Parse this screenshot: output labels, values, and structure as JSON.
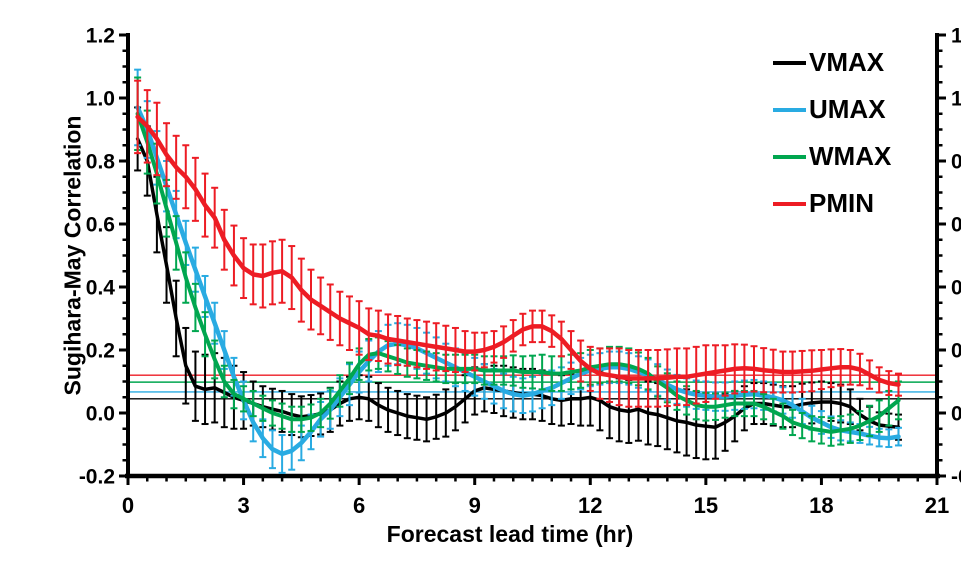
{
  "chart_data": {
    "type": "line",
    "title": "",
    "xlabel": "Forecast lead time (hr)",
    "ylabel": "Sugihara-May Correlation",
    "xlim": [
      0,
      21
    ],
    "ylim": [
      -0.2,
      1.2
    ],
    "x_major_ticks": [
      0,
      3,
      6,
      9,
      12,
      15,
      18,
      21
    ],
    "x_minor_step": 0.5,
    "y_major_ticks": [
      -0.2,
      0.0,
      0.2,
      0.4,
      0.6,
      0.8,
      1.0,
      1.2
    ],
    "y_minor_step": 0.05,
    "grid": false,
    "legend_position": "top-right-inside",
    "right_axis_mirror": true,
    "axis_color": "#000000",
    "background": "#ffffff",
    "x_start": 0.25,
    "x_step": 0.25,
    "series": [
      {
        "name": "VMAX",
        "color": "#000000",
        "line_width": 3.5,
        "ref_line": 0.045,
        "values": [
          0.87,
          0.8,
          0.63,
          0.47,
          0.3,
          0.15,
          0.085,
          0.075,
          0.08,
          0.065,
          0.05,
          0.04,
          0.03,
          0.02,
          0.012,
          0.005,
          -0.005,
          -0.012,
          -0.008,
          -0.003,
          0.01,
          0.03,
          0.045,
          0.05,
          0.045,
          0.025,
          0.01,
          0.0,
          -0.01,
          -0.015,
          -0.02,
          -0.012,
          0.0,
          0.02,
          0.045,
          0.07,
          0.08,
          0.075,
          0.07,
          0.065,
          0.06,
          0.06,
          0.055,
          0.045,
          0.04,
          0.045,
          0.045,
          0.05,
          0.04,
          0.02,
          0.01,
          0.005,
          0.012,
          0.0,
          -0.005,
          -0.015,
          -0.025,
          -0.03,
          -0.038,
          -0.042,
          -0.045,
          -0.03,
          -0.01,
          0.015,
          0.03,
          0.03,
          0.025,
          0.02,
          0.02,
          0.028,
          0.032,
          0.035,
          0.035,
          0.03,
          0.02,
          -0.005,
          -0.025,
          -0.038,
          -0.042,
          -0.045
        ],
        "errors": [
          0.1,
          0.11,
          0.12,
          0.12,
          0.12,
          0.12,
          0.11,
          0.11,
          0.11,
          0.11,
          0.1,
          0.09,
          0.07,
          0.065,
          0.065,
          0.065,
          0.065,
          0.065,
          0.065,
          0.065,
          0.07,
          0.07,
          0.07,
          0.07,
          0.07,
          0.07,
          0.07,
          0.07,
          0.07,
          0.07,
          0.07,
          0.07,
          0.075,
          0.075,
          0.075,
          0.075,
          0.075,
          0.075,
          0.08,
          0.08,
          0.08,
          0.08,
          0.08,
          0.08,
          0.08,
          0.08,
          0.085,
          0.09,
          0.095,
          0.1,
          0.1,
          0.1,
          0.1,
          0.1,
          0.1,
          0.1,
          0.1,
          0.105,
          0.105,
          0.105,
          0.1,
          0.09,
          0.08,
          0.07,
          0.065,
          0.065,
          0.065,
          0.065,
          0.065,
          0.065,
          0.065,
          0.065,
          0.06,
          0.06,
          0.055,
          0.05,
          0.045,
          0.04,
          0.04,
          0.04
        ]
      },
      {
        "name": "UMAX",
        "color": "#29ABE2",
        "line_width": 4.5,
        "ref_line": 0.067,
        "values": [
          0.97,
          0.9,
          0.81,
          0.72,
          0.63,
          0.54,
          0.455,
          0.37,
          0.285,
          0.2,
          0.115,
          0.04,
          -0.03,
          -0.08,
          -0.115,
          -0.13,
          -0.12,
          -0.095,
          -0.06,
          -0.02,
          0.01,
          0.05,
          0.09,
          0.13,
          0.165,
          0.195,
          0.215,
          0.22,
          0.215,
          0.205,
          0.19,
          0.175,
          0.16,
          0.145,
          0.13,
          0.115,
          0.1,
          0.085,
          0.07,
          0.06,
          0.055,
          0.06,
          0.07,
          0.08,
          0.095,
          0.11,
          0.125,
          0.135,
          0.14,
          0.145,
          0.145,
          0.14,
          0.13,
          0.12,
          0.105,
          0.09,
          0.075,
          0.065,
          0.058,
          0.055,
          0.052,
          0.052,
          0.055,
          0.058,
          0.06,
          0.055,
          0.05,
          0.04,
          0.025,
          0.005,
          -0.015,
          -0.03,
          -0.045,
          -0.055,
          -0.06,
          -0.065,
          -0.072,
          -0.078,
          -0.08,
          -0.075
        ],
        "errors": [
          0.12,
          0.09,
          0.085,
          0.08,
          0.075,
          0.07,
          0.07,
          0.065,
          0.065,
          0.06,
          0.06,
          0.06,
          0.06,
          0.06,
          0.06,
          0.06,
          0.06,
          0.055,
          0.055,
          0.055,
          0.06,
          0.06,
          0.065,
          0.065,
          0.065,
          0.065,
          0.065,
          0.065,
          0.065,
          0.065,
          0.065,
          0.065,
          0.06,
          0.06,
          0.06,
          0.06,
          0.055,
          0.055,
          0.055,
          0.055,
          0.055,
          0.055,
          0.055,
          0.055,
          0.05,
          0.05,
          0.05,
          0.05,
          0.05,
          0.05,
          0.05,
          0.05,
          0.05,
          0.05,
          0.05,
          0.048,
          0.046,
          0.045,
          0.045,
          0.045,
          0.045,
          0.045,
          0.045,
          0.045,
          0.045,
          0.045,
          0.045,
          0.042,
          0.04,
          0.04,
          0.038,
          0.036,
          0.034,
          0.032,
          0.03,
          0.03,
          0.028,
          0.028,
          0.028,
          0.028
        ]
      },
      {
        "name": "WMAX",
        "color": "#00A64F",
        "line_width": 4,
        "ref_line": 0.098,
        "values": [
          0.95,
          0.86,
          0.76,
          0.65,
          0.54,
          0.43,
          0.335,
          0.25,
          0.17,
          0.1,
          0.06,
          0.045,
          0.03,
          0.015,
          0.0,
          -0.01,
          -0.02,
          -0.02,
          -0.015,
          0.0,
          0.03,
          0.07,
          0.11,
          0.155,
          0.185,
          0.19,
          0.18,
          0.17,
          0.16,
          0.155,
          0.15,
          0.145,
          0.14,
          0.14,
          0.14,
          0.14,
          0.135,
          0.135,
          0.135,
          0.135,
          0.13,
          0.13,
          0.13,
          0.125,
          0.125,
          0.13,
          0.135,
          0.145,
          0.15,
          0.155,
          0.155,
          0.15,
          0.14,
          0.125,
          0.1,
          0.08,
          0.055,
          0.04,
          0.025,
          0.02,
          0.02,
          0.025,
          0.03,
          0.03,
          0.03,
          0.02,
          0.005,
          -0.01,
          -0.03,
          -0.04,
          -0.05,
          -0.055,
          -0.06,
          -0.055,
          -0.05,
          -0.04,
          -0.025,
          -0.01,
          0.015,
          0.04
        ],
        "errors": [
          0.115,
          0.1,
          0.095,
          0.09,
          0.085,
          0.08,
          0.075,
          0.07,
          0.06,
          0.05,
          0.045,
          0.04,
          0.04,
          0.04,
          0.04,
          0.04,
          0.04,
          0.04,
          0.042,
          0.045,
          0.048,
          0.05,
          0.05,
          0.05,
          0.05,
          0.05,
          0.048,
          0.046,
          0.045,
          0.045,
          0.045,
          0.045,
          0.045,
          0.045,
          0.045,
          0.045,
          0.045,
          0.045,
          0.045,
          0.048,
          0.05,
          0.052,
          0.055,
          0.055,
          0.055,
          0.055,
          0.055,
          0.055,
          0.055,
          0.055,
          0.055,
          0.055,
          0.052,
          0.05,
          0.048,
          0.046,
          0.045,
          0.045,
          0.045,
          0.044,
          0.042,
          0.04,
          0.04,
          0.04,
          0.04,
          0.04,
          0.04,
          0.04,
          0.04,
          0.04,
          0.04,
          0.042,
          0.044,
          0.045,
          0.045,
          0.046,
          0.048,
          0.05,
          0.055,
          0.06
        ]
      },
      {
        "name": "PMIN",
        "color": "#ED1C24",
        "line_width": 4.5,
        "ref_line": 0.12,
        "values": [
          0.94,
          0.91,
          0.87,
          0.82,
          0.78,
          0.75,
          0.71,
          0.66,
          0.62,
          0.55,
          0.5,
          0.46,
          0.44,
          0.435,
          0.445,
          0.45,
          0.43,
          0.39,
          0.36,
          0.34,
          0.32,
          0.3,
          0.285,
          0.27,
          0.25,
          0.245,
          0.235,
          0.23,
          0.225,
          0.22,
          0.215,
          0.21,
          0.205,
          0.2,
          0.195,
          0.195,
          0.2,
          0.21,
          0.225,
          0.245,
          0.265,
          0.275,
          0.275,
          0.26,
          0.235,
          0.2,
          0.165,
          0.14,
          0.125,
          0.12,
          0.115,
          0.11,
          0.11,
          0.11,
          0.11,
          0.112,
          0.115,
          0.115,
          0.12,
          0.125,
          0.13,
          0.135,
          0.14,
          0.142,
          0.14,
          0.136,
          0.133,
          0.13,
          0.13,
          0.132,
          0.134,
          0.138,
          0.142,
          0.145,
          0.145,
          0.138,
          0.122,
          0.105,
          0.095,
          0.09
        ],
        "errors": [
          0.115,
          0.115,
          0.115,
          0.1,
          0.1,
          0.1,
          0.1,
          0.1,
          0.095,
          0.095,
          0.095,
          0.095,
          0.095,
          0.1,
          0.1,
          0.1,
          0.1,
          0.1,
          0.095,
          0.09,
          0.088,
          0.085,
          0.085,
          0.085,
          0.082,
          0.08,
          0.078,
          0.078,
          0.075,
          0.075,
          0.075,
          0.075,
          0.072,
          0.07,
          0.065,
          0.06,
          0.055,
          0.05,
          0.05,
          0.05,
          0.05,
          0.05,
          0.05,
          0.05,
          0.055,
          0.06,
          0.065,
          0.07,
          0.08,
          0.085,
          0.09,
          0.09,
          0.09,
          0.09,
          0.09,
          0.09,
          0.09,
          0.09,
          0.09,
          0.09,
          0.085,
          0.08,
          0.078,
          0.075,
          0.072,
          0.07,
          0.068,
          0.065,
          0.065,
          0.065,
          0.065,
          0.062,
          0.06,
          0.058,
          0.055,
          0.05,
          0.045,
          0.04,
          0.038,
          0.035
        ]
      }
    ]
  }
}
